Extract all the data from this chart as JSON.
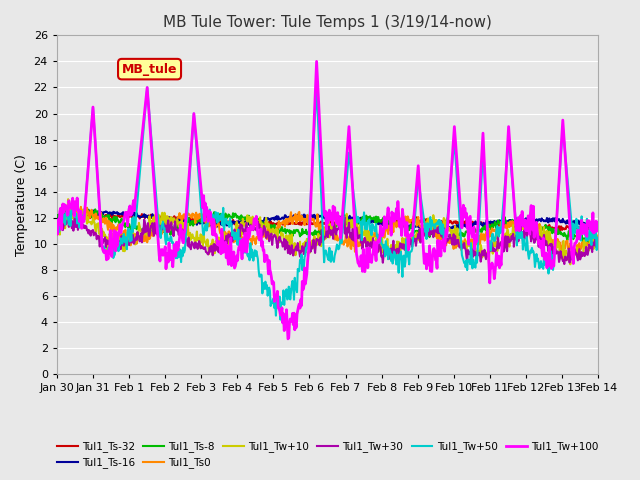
{
  "title": "MB Tule Tower: Tule Temps 1 (3/19/14-now)",
  "ylabel": "Temperature (C)",
  "ylim": [
    0,
    26
  ],
  "yticks": [
    0,
    2,
    4,
    6,
    8,
    10,
    12,
    14,
    16,
    18,
    20,
    22,
    24,
    26
  ],
  "date_labels": [
    "Jan 30",
    "Jan 31",
    "Feb 1",
    "Feb 2",
    "Feb 3",
    "Feb 4",
    "Feb 5",
    "Feb 6",
    "Feb 7",
    "Feb 8",
    "Feb 9",
    "Feb 10",
    "Feb 11",
    "Feb 12",
    "Feb 13",
    "Feb 14"
  ],
  "xtick_positions": [
    0,
    1,
    2,
    3,
    4,
    5,
    6,
    7,
    8,
    9,
    10,
    11,
    12,
    13,
    14,
    15
  ],
  "series": {
    "Tul1_Ts-32": {
      "color": "#cc0000",
      "lw": 1.5
    },
    "Tul1_Ts-16": {
      "color": "#000099",
      "lw": 1.5
    },
    "Tul1_Ts-8": {
      "color": "#00bb00",
      "lw": 1.5
    },
    "Tul1_Ts0": {
      "color": "#ff8800",
      "lw": 1.5
    },
    "Tul1_Tw+10": {
      "color": "#cccc00",
      "lw": 1.5
    },
    "Tul1_Tw+30": {
      "color": "#aa00aa",
      "lw": 1.5
    },
    "Tul1_Tw+50": {
      "color": "#00cccc",
      "lw": 1.5
    },
    "Tul1_Tw+100": {
      "color": "#ff00ff",
      "lw": 2.0
    }
  },
  "legend_box": {
    "text": "MB_tule",
    "facecolor": "#ffff99",
    "edgecolor": "#cc0000"
  },
  "bg_color": "#e8e8e8",
  "grid_color": "#ffffff"
}
